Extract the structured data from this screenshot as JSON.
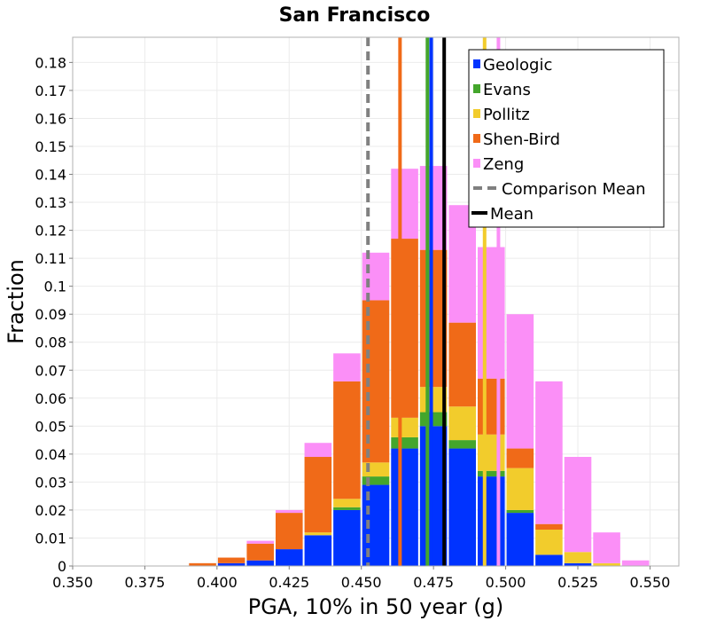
{
  "chart_data": {
    "type": "bar",
    "stacked": true,
    "title": "San Francisco",
    "xlabel": "PGA, 10% in 50 year (g)",
    "ylabel": "Fraction",
    "xlim": [
      0.35,
      0.56
    ],
    "ylim": [
      0,
      0.189
    ],
    "bin_width": 0.01,
    "grid": true,
    "x_ticks": [
      "0.350",
      "0.375",
      "0.400",
      "0.425",
      "0.450",
      "0.475",
      "0.500",
      "0.525",
      "0.550"
    ],
    "y_ticks": [
      "0",
      "0.01",
      "0.02",
      "0.03",
      "0.04",
      "0.05",
      "0.06",
      "0.07",
      "0.08",
      "0.09",
      "0.1",
      "0.11",
      "0.12",
      "0.13",
      "0.14",
      "0.15",
      "0.16",
      "0.17",
      "0.18"
    ],
    "bins": [
      0.355,
      0.365,
      0.375,
      0.385,
      0.395,
      0.405,
      0.415,
      0.425,
      0.435,
      0.445,
      0.455,
      0.465,
      0.475,
      0.485,
      0.495,
      0.505,
      0.515,
      0.525,
      0.535,
      0.545,
      0.555
    ],
    "series": [
      {
        "name": "Geologic",
        "color": "#0033ff",
        "values": [
          0,
          0,
          0,
          0,
          0,
          0.001,
          0.002,
          0.006,
          0.011,
          0.02,
          0.029,
          0.042,
          0.05,
          0.042,
          0.032,
          0.019,
          0.004,
          0.001,
          0,
          0,
          0
        ]
      },
      {
        "name": "Evans",
        "color": "#44a62c",
        "values": [
          0,
          0,
          0,
          0,
          0,
          0,
          0,
          0,
          0,
          0.001,
          0.003,
          0.004,
          0.005,
          0.003,
          0.002,
          0.001,
          0,
          0,
          0,
          0,
          0
        ]
      },
      {
        "name": "Pollitz",
        "color": "#f2cc2c",
        "values": [
          0,
          0,
          0,
          0,
          0,
          0,
          0,
          0,
          0.001,
          0.003,
          0.005,
          0.007,
          0.009,
          0.012,
          0.013,
          0.015,
          0.009,
          0.004,
          0.001,
          0,
          0
        ]
      },
      {
        "name": "Shen-Bird",
        "color": "#f06a18",
        "values": [
          0,
          0,
          0,
          0,
          0.001,
          0.002,
          0.006,
          0.013,
          0.027,
          0.042,
          0.058,
          0.064,
          0.049,
          0.03,
          0.02,
          0.007,
          0.002,
          0,
          0,
          0,
          0
        ]
      },
      {
        "name": "Zeng",
        "color": "#fb8ff7",
        "values": [
          0,
          0,
          0,
          0,
          0,
          0,
          0.001,
          0.001,
          0.005,
          0.01,
          0.017,
          0.025,
          0.03,
          0.042,
          0.047,
          0.048,
          0.051,
          0.034,
          0.011,
          0.002,
          0
        ]
      }
    ],
    "reference_lines": [
      {
        "name": "Shen-Bird",
        "value": 0.4634,
        "color": "#f06a18",
        "style": "solid"
      },
      {
        "name": "Evans",
        "value": 0.4729,
        "color": "#44a62c",
        "style": "solid"
      },
      {
        "name": "Geologic",
        "value": 0.4742,
        "color": "#0033ff",
        "style": "solid"
      },
      {
        "name": "Pollitz",
        "value": 0.4927,
        "color": "#f2cc2c",
        "style": "solid"
      },
      {
        "name": "Zeng",
        "value": 0.4975,
        "color": "#fb8ff7",
        "style": "solid"
      },
      {
        "name": "Comparison Mean",
        "value": 0.4523,
        "color": "#808080",
        "style": "dashed"
      },
      {
        "name": "Mean",
        "value": 0.4787,
        "color": "#000000",
        "style": "solid"
      }
    ],
    "legend": {
      "position": "top-right",
      "entries": [
        {
          "label": "Geologic",
          "color": "#0033ff",
          "kind": "box"
        },
        {
          "label": "Evans",
          "color": "#44a62c",
          "kind": "box"
        },
        {
          "label": "Pollitz",
          "color": "#f2cc2c",
          "kind": "box"
        },
        {
          "label": "Shen-Bird",
          "color": "#f06a18",
          "kind": "box"
        },
        {
          "label": "Zeng",
          "color": "#fb8ff7",
          "kind": "box"
        },
        {
          "label": "Comparison Mean",
          "color": "#808080",
          "kind": "dash"
        },
        {
          "label": "Mean",
          "color": "#000000",
          "kind": "line"
        }
      ]
    }
  }
}
